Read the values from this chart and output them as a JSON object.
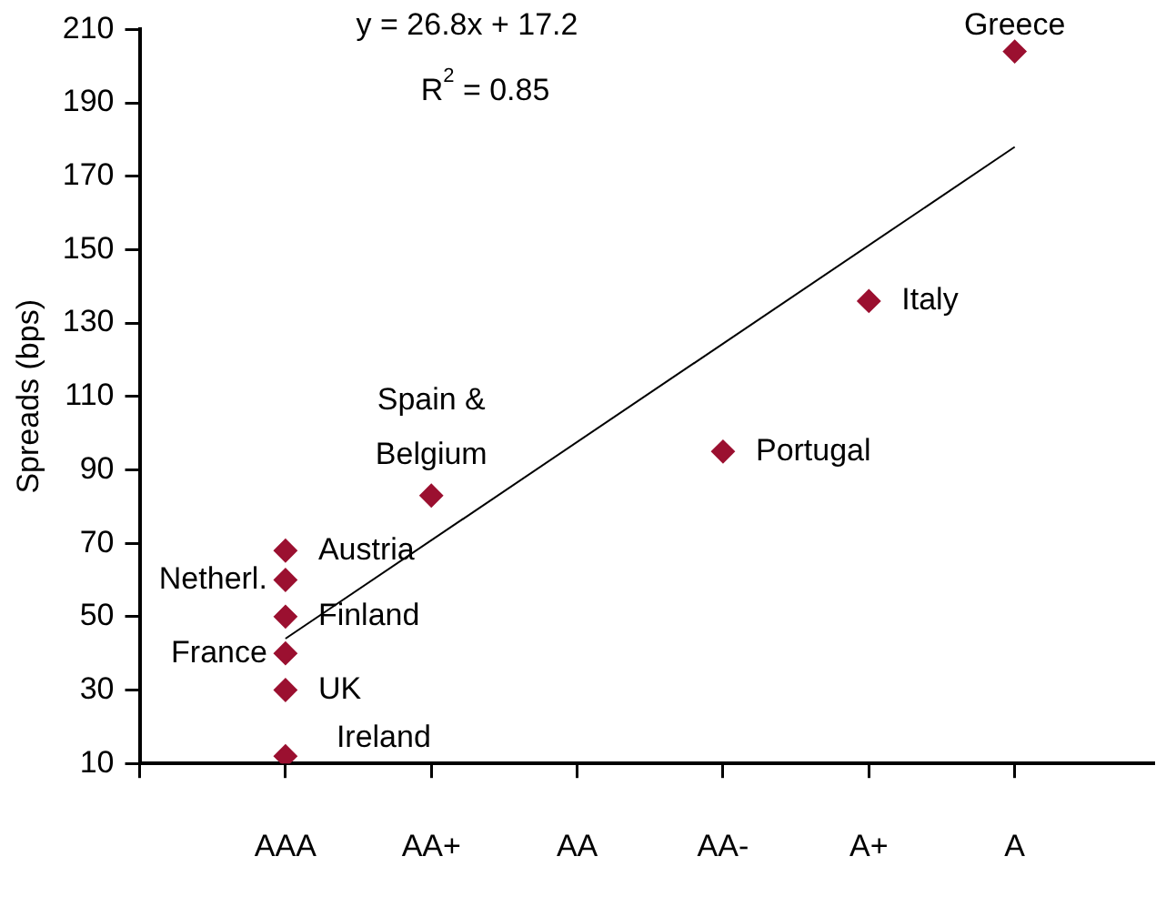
{
  "chart_data": {
    "type": "scatter",
    "ylabel": "Spreads (bps)",
    "categories": [
      "AAA",
      "AA+",
      "AA",
      "AA-",
      "A+",
      "A"
    ],
    "ylim": [
      10,
      210
    ],
    "yticks": [
      10,
      30,
      50,
      70,
      90,
      110,
      130,
      150,
      170,
      190,
      210
    ],
    "grid": false,
    "legend": false,
    "series": [
      {
        "color": "#9b1030",
        "marker": "diamond",
        "x": [
          "A",
          "A+",
          "AA-",
          "AA+",
          "AAA",
          "AAA",
          "AAA",
          "AAA",
          "AAA",
          "AAA"
        ],
        "values": [
          204,
          136,
          95,
          83,
          68,
          60,
          50,
          40,
          30,
          12
        ]
      },
      {
        "type": "line",
        "marker": "none",
        "color": "#000000",
        "x": [
          "AAA",
          "A"
        ],
        "values": [
          44,
          178
        ]
      }
    ],
    "annotations": [
      "y = 26.8x + 17.2",
      "R$^{2}$ = 0.85",
      {
        "text": "Greece",
        "x": "A",
        "y": 204
      },
      {
        "text": "Italy",
        "x": "A+",
        "y": 136
      },
      {
        "text": "Portugal",
        "x": "AA-",
        "y": 95
      },
      {
        "text": "Spain & Belgium",
        "x": "AA+",
        "y": 83
      },
      {
        "text": "Austria",
        "x": "AAA",
        "y": 68
      },
      {
        "text": "Netherl.",
        "x": "AAA",
        "y": 60
      },
      {
        "text": "Finland",
        "x": "AAA",
        "y": 50
      },
      {
        "text": "France",
        "x": "AAA",
        "y": 40
      },
      {
        "text": "UK",
        "x": "AAA",
        "y": 30
      },
      {
        "text": "Ireland",
        "x": "AAA",
        "y": 12
      }
    ]
  }
}
